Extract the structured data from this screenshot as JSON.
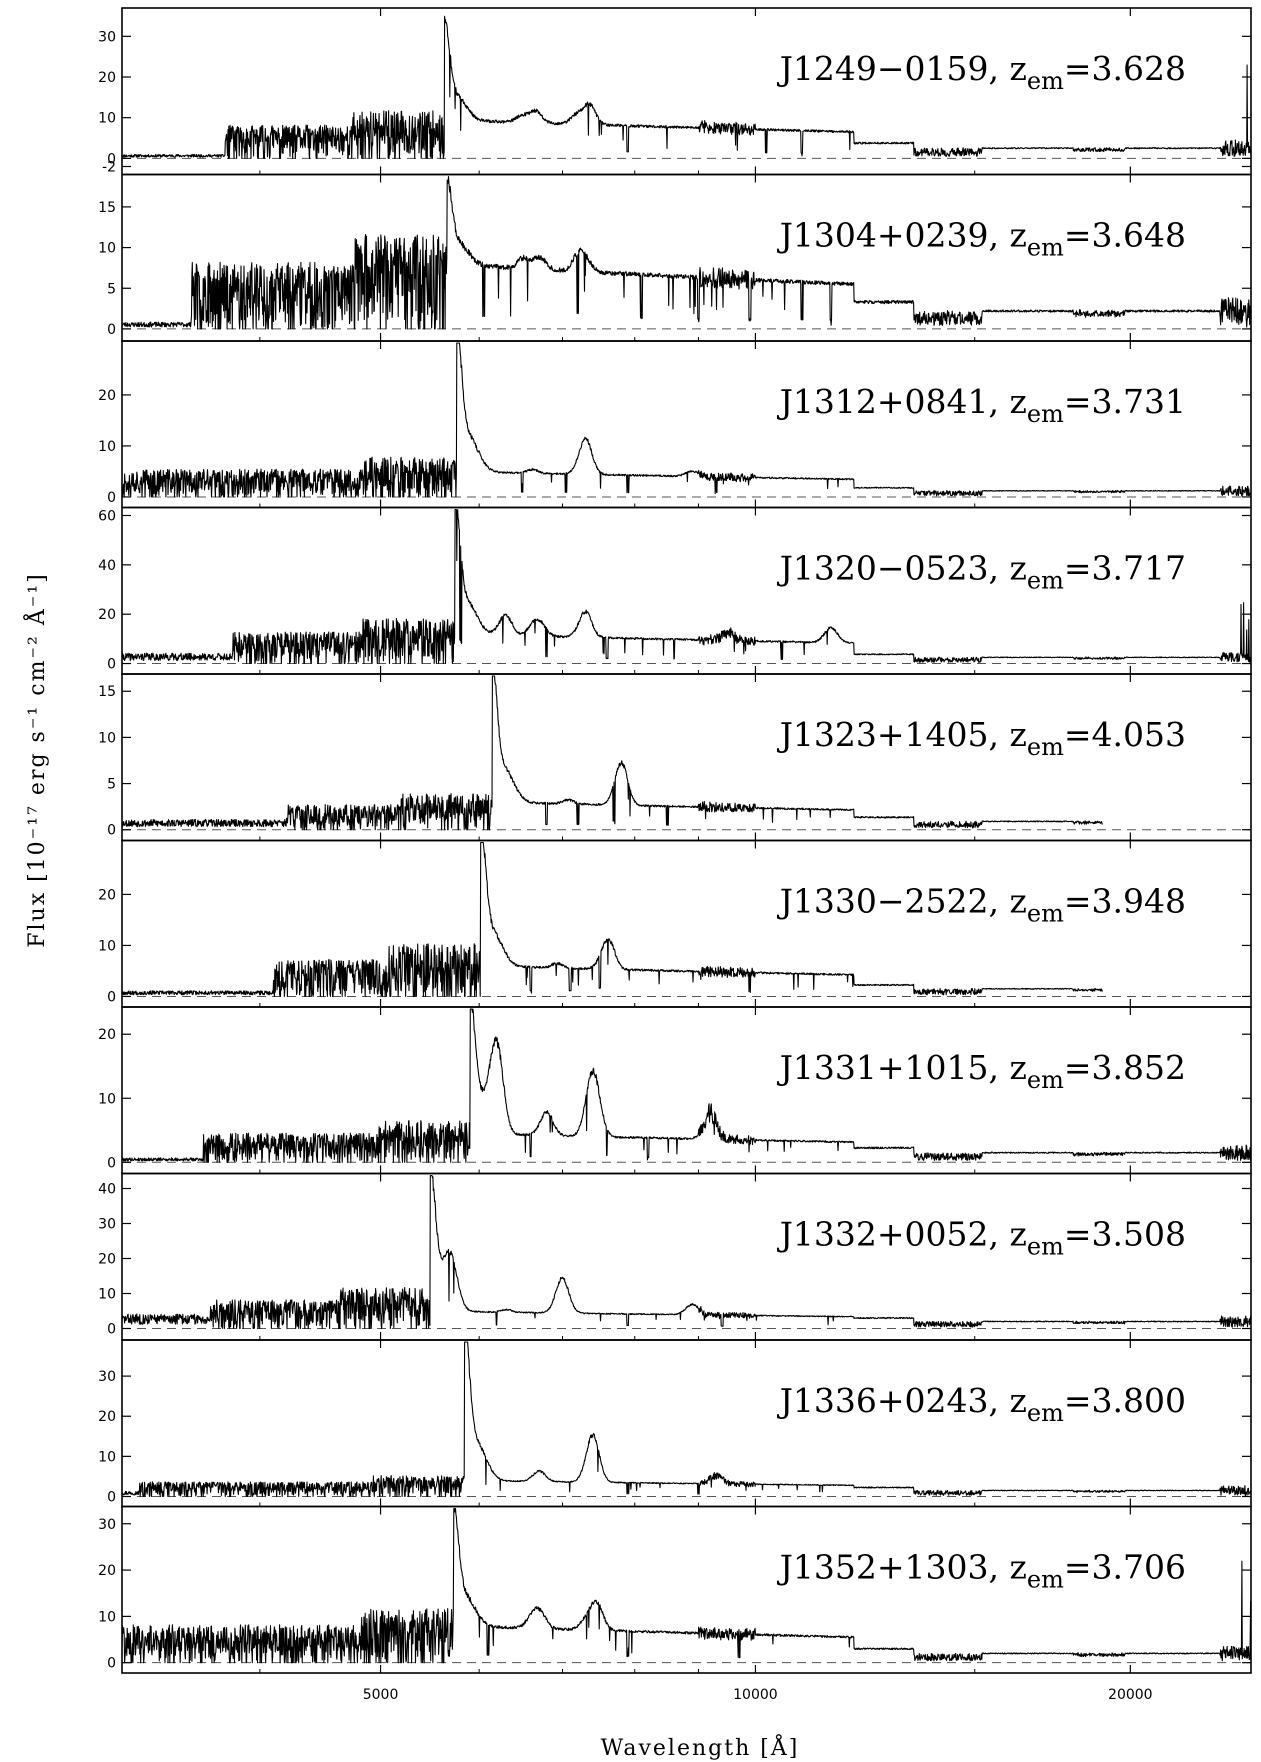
{
  "chart_data": {
    "type": "line",
    "xlabel": "Wavelength [Å]",
    "ylabel": "Flux [10⁻¹⁷ erg s⁻¹ cm⁻² Å⁻¹]",
    "x_scale": "log",
    "xlim": [
      3100,
      25000
    ],
    "x_ticks": [
      {
        "value": 5000,
        "label": "5000"
      },
      {
        "value": 10000,
        "label": "10000"
      },
      {
        "value": 20000,
        "label": "20000"
      }
    ],
    "reference_line": {
      "y": 0,
      "style": "dashed"
    },
    "panels": [
      {
        "name": "J1249−0159",
        "z_label": "z",
        "z_sub": "em",
        "z_value": "=3.628",
        "z": 3.628,
        "ylim": [
          -2,
          35
        ],
        "y_ticks": [
          -2,
          0,
          10,
          20,
          30
        ],
        "bp_start": 3750,
        "peak_flux": 30,
        "plateau": 9.5,
        "forest": 9,
        "lowblue": 0.7,
        "ir_level": 2.5,
        "ir_end": 25000,
        "ir_spike": 33,
        "bumps": [
          [
            6650,
            3
          ],
          [
            7350,
            5
          ]
        ],
        "abs": [
          7900,
          10200,
          10900
        ],
        "seed": 11
      },
      {
        "name": "J1304+0239",
        "z_label": "z",
        "z_sub": "em",
        "z_value": "=3.648",
        "z": 3.648,
        "ylim": [
          -0.5,
          18
        ],
        "y_ticks": [
          0,
          5,
          10,
          15
        ],
        "bp_start": 3520,
        "peak_flux": 17,
        "plateau": 8,
        "forest": 9,
        "lowblue": 0.6,
        "ir_level": 2.2,
        "ir_end": 25000,
        "ir_spike": 3,
        "bumps": [
          [
            6700,
            1.5
          ],
          [
            7300,
            1.5
          ]
        ],
        "abs": [
          6050,
          6350,
          7200,
          8100,
          9000,
          9900,
          10900,
          11500
        ],
        "seed": 23
      },
      {
        "name": "J1312+0841",
        "z_label": "z",
        "z_sub": "em",
        "z_value": "=3.731",
        "z": 3.731,
        "ylim": [
          -0.5,
          29
        ],
        "y_ticks": [
          0,
          10,
          20
        ],
        "bp_start": 3000,
        "peak_flux": 29,
        "plateau": 5,
        "forest": 6,
        "lowblue": 0.8,
        "ir_level": 1.2,
        "ir_end": 25000,
        "ir_spike": 1.5,
        "bumps": [
          [
            7300,
            6
          ],
          [
            8900,
            1
          ]
        ],
        "abs": [
          6500,
          7050,
          7900,
          9300
        ],
        "seed": 37
      },
      {
        "name": "J1320−0523",
        "z_label": "z",
        "z_sub": "em",
        "z_value": "=3.717",
        "z": 3.717,
        "ylim": [
          -1,
          60
        ],
        "y_ticks": [
          0,
          20,
          40,
          60
        ],
        "bp_start": 3800,
        "peak_flux": 58,
        "plateau": 12,
        "forest": 14,
        "lowblue": 3,
        "ir_level": 2.5,
        "ir_end": 25000,
        "ir_spike": 25,
        "bumps": [
          [
            6300,
            8
          ],
          [
            6700,
            6
          ],
          [
            7300,
            8
          ],
          [
            9500,
            3
          ],
          [
            11500,
            6
          ]
        ],
        "abs": [
          5800,
          6800,
          7600,
          8600,
          10500
        ],
        "seed": 41
      },
      {
        "name": "J1323+1405",
        "z_label": "z",
        "z_sub": "em",
        "z_value": "=4.053",
        "z": 4.053,
        "ylim": [
          -0.3,
          16
        ],
        "y_ticks": [
          0,
          5,
          10,
          15
        ],
        "bp_start": 4200,
        "peak_flux": 15.5,
        "plateau": 3,
        "forest": 3,
        "lowblue": 0.8,
        "ir_level": 0.9,
        "ir_end": 19000,
        "ir_spike": 1.2,
        "bumps": [
          [
            7800,
            4
          ],
          [
            5200,
            3
          ]
        ],
        "abs": [
          6800,
          7200,
          7700,
          8500
        ],
        "seed": 53
      },
      {
        "name": "J1330−2522",
        "z_label": "z",
        "z_sub": "em",
        "z_value": "=3.948",
        "z": 3.948,
        "ylim": [
          -0.5,
          29
        ],
        "y_ticks": [
          0,
          10,
          20
        ],
        "bp_start": 4100,
        "peak_flux": 29,
        "plateau": 6,
        "forest": 8,
        "lowblue": 0.8,
        "ir_level": 1.5,
        "ir_end": 19000,
        "ir_spike": 1.5,
        "bumps": [
          [
            7600,
            5
          ],
          [
            4900,
            3
          ]
        ],
        "abs": [
          6600,
          7100,
          7500,
          9900
        ],
        "seed": 67
      },
      {
        "name": "J1331+1015",
        "z_label": "z",
        "z_sub": "em",
        "z_value": "=3.852",
        "z": 3.852,
        "ylim": [
          -0.5,
          23
        ],
        "y_ticks": [
          0,
          10,
          20
        ],
        "bp_start": 3600,
        "peak_flux": 22,
        "plateau": 4.5,
        "forest": 5,
        "lowblue": 0.5,
        "ir_level": 1.5,
        "ir_end": 25000,
        "ir_spike": 3,
        "bumps": [
          [
            6200,
            13
          ],
          [
            5000,
            6
          ],
          [
            7400,
            10
          ],
          [
            9200,
            4
          ],
          [
            6800,
            3
          ]
        ],
        "abs": [
          6600,
          7600,
          8200
        ],
        "seed": 79
      },
      {
        "name": "J1332+0052",
        "z_label": "z",
        "z_sub": "em",
        "z_value": "=3.508",
        "z": 3.508,
        "ylim": [
          -1,
          42
        ],
        "y_ticks": [
          0,
          10,
          20,
          30,
          40
        ],
        "bp_start": 3650,
        "peak_flux": 39,
        "plateau": 5,
        "forest": 9,
        "lowblue": 3,
        "ir_level": 2,
        "ir_end": 25000,
        "ir_spike": 3,
        "bumps": [
          [
            7000,
            9
          ],
          [
            5700,
            10
          ],
          [
            4600,
            16
          ],
          [
            8900,
            3
          ]
        ],
        "abs": [
          6200,
          7900,
          9400
        ],
        "seed": 83
      },
      {
        "name": "J1336+0243",
        "z_label": "z",
        "z_sub": "em",
        "z_value": "=3.800",
        "z": 3.8,
        "ylim": [
          -0.5,
          37
        ],
        "y_ticks": [
          0,
          10,
          20,
          30
        ],
        "bp_start": 3200,
        "peak_flux": 37,
        "plateau": 4,
        "forest": 4,
        "lowblue": 1,
        "ir_level": 1.5,
        "ir_end": 25000,
        "ir_spike": 2,
        "bumps": [
          [
            7400,
            11
          ],
          [
            5000,
            5
          ],
          [
            9300,
            2
          ],
          [
            6700,
            2
          ]
        ],
        "abs": [
          7900,
          9000
        ],
        "seed": 97
      },
      {
        "name": "J1352+1303",
        "z_label": "z",
        "z_sub": "em",
        "z_value": "=3.706",
        "z": 3.706,
        "ylim": [
          -0.5,
          32
        ],
        "y_ticks": [
          0,
          10,
          20,
          30
        ],
        "bp_start": 2900,
        "peak_flux": 30,
        "plateau": 8,
        "forest": 9,
        "lowblue": 0.6,
        "ir_level": 2,
        "ir_end": 25000,
        "ir_spike": 26,
        "bumps": [
          [
            6700,
            4
          ],
          [
            7450,
            6
          ],
          [
            4800,
            6
          ]
        ],
        "abs": [
          6100,
          7900,
          9700
        ],
        "seed": 101
      }
    ]
  }
}
